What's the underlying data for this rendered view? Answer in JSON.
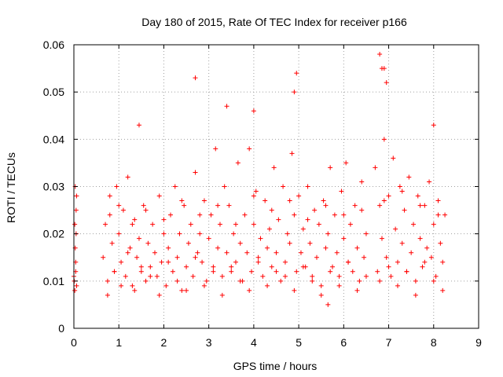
{
  "chart_data": {
    "type": "scatter",
    "title": "Day 180 of 2015, Rate Of TEC Index for receiver p166",
    "xlabel": "GPS time / hours",
    "ylabel": "ROTI / TECUs",
    "xlim": [
      0,
      9
    ],
    "ylim": [
      0,
      0.06
    ],
    "xticks": [
      "0",
      "1",
      "2",
      "3",
      "4",
      "5",
      "6",
      "7",
      "8",
      "9"
    ],
    "yticks": [
      "0",
      "0.01",
      "0.02",
      "0.03",
      "0.04",
      "0.05",
      "0.06"
    ],
    "grid": true,
    "marker": "+",
    "marker_color": "#ff0000",
    "series": [
      {
        "name": "ROTI",
        "x": [
          0.0,
          0.02,
          0.03,
          0.05,
          0.06,
          0.04,
          0.01,
          0.03,
          0.05,
          0.02,
          0.06,
          0.04,
          0.65,
          0.7,
          0.75,
          0.8,
          0.85,
          0.9,
          0.95,
          1.0,
          1.05,
          1.1,
          1.15,
          1.2,
          1.25,
          1.3,
          1.35,
          1.4,
          1.45,
          1.5,
          1.55,
          1.6,
          1.65,
          1.7,
          1.75,
          1.8,
          1.85,
          1.9,
          1.95,
          2.0,
          2.05,
          2.1,
          2.15,
          2.2,
          2.25,
          2.3,
          2.35,
          2.4,
          2.45,
          2.5,
          2.55,
          2.6,
          2.65,
          2.7,
          2.75,
          2.8,
          2.85,
          2.9,
          2.95,
          3.0,
          3.05,
          3.1,
          3.15,
          3.2,
          3.25,
          3.3,
          3.35,
          3.4,
          3.45,
          3.5,
          3.55,
          3.6,
          3.65,
          3.7,
          3.75,
          3.8,
          3.85,
          3.9,
          3.95,
          4.0,
          4.05,
          4.1,
          4.15,
          4.2,
          4.25,
          4.3,
          4.35,
          4.4,
          4.45,
          4.5,
          4.55,
          4.6,
          4.65,
          4.7,
          4.75,
          4.8,
          4.85,
          4.9,
          4.95,
          5.0,
          5.05,
          5.1,
          5.15,
          5.2,
          5.25,
          5.3,
          5.35,
          5.4,
          5.45,
          5.5,
          5.55,
          5.6,
          5.65,
          5.7,
          5.75,
          5.8,
          5.85,
          5.9,
          5.95,
          6.0,
          6.05,
          6.1,
          6.15,
          6.2,
          6.25,
          6.3,
          6.35,
          6.4,
          6.45,
          6.5,
          6.7,
          6.75,
          6.8,
          6.85,
          6.9,
          6.95,
          7.0,
          7.05,
          7.1,
          7.15,
          7.2,
          7.25,
          7.3,
          7.35,
          7.4,
          7.45,
          7.5,
          7.55,
          7.6,
          7.65,
          7.7,
          7.75,
          7.8,
          7.85,
          7.9,
          7.95,
          8.0,
          8.05,
          8.1,
          8.15,
          8.2,
          8.25,
          0.75,
          0.9,
          1.05,
          1.2,
          1.35,
          1.5,
          1.7,
          1.9,
          2.1,
          2.3,
          2.5,
          2.7,
          2.9,
          3.1,
          3.3,
          3.5,
          3.7,
          3.9,
          4.1,
          4.3,
          4.5,
          4.7,
          4.9,
          5.1,
          5.3,
          5.5,
          5.7,
          5.9,
          6.1,
          6.3,
          6.5,
          6.8,
          7.0,
          7.2,
          7.4,
          7.6,
          7.8,
          8.0,
          8.2,
          0.8,
          1.0,
          1.3,
          1.6,
          2.0,
          2.4,
          2.8,
          3.2,
          3.6,
          4.0,
          4.4,
          4.8,
          5.2,
          5.6,
          6.0,
          6.4,
          6.9,
          7.3,
          7.7,
          8.1,
          2.7,
          1.45,
          3.4,
          4.0,
          4.95,
          4.9,
          6.8,
          6.85,
          6.9,
          6.95,
          8.0,
          5.65
        ],
        "y": [
          0.011,
          0.022,
          0.03,
          0.025,
          0.009,
          0.014,
          0.01,
          0.017,
          0.02,
          0.008,
          0.028,
          0.012,
          0.015,
          0.022,
          0.01,
          0.028,
          0.018,
          0.012,
          0.03,
          0.02,
          0.014,
          0.025,
          0.011,
          0.032,
          0.017,
          0.009,
          0.023,
          0.015,
          0.019,
          0.012,
          0.026,
          0.01,
          0.018,
          0.013,
          0.022,
          0.016,
          0.011,
          0.028,
          0.014,
          0.02,
          0.009,
          0.017,
          0.024,
          0.012,
          0.03,
          0.015,
          0.02,
          0.008,
          0.026,
          0.013,
          0.018,
          0.022,
          0.011,
          0.033,
          0.016,
          0.02,
          0.014,
          0.027,
          0.01,
          0.019,
          0.024,
          0.013,
          0.038,
          0.017,
          0.022,
          0.011,
          0.03,
          0.016,
          0.026,
          0.012,
          0.02,
          0.014,
          0.035,
          0.018,
          0.01,
          0.024,
          0.016,
          0.038,
          0.012,
          0.022,
          0.029,
          0.015,
          0.019,
          0.011,
          0.027,
          0.017,
          0.021,
          0.013,
          0.034,
          0.016,
          0.023,
          0.01,
          0.03,
          0.014,
          0.02,
          0.018,
          0.037,
          0.024,
          0.012,
          0.028,
          0.016,
          0.021,
          0.013,
          0.03,
          0.018,
          0.011,
          0.025,
          0.015,
          0.022,
          0.009,
          0.027,
          0.017,
          0.02,
          0.034,
          0.013,
          0.024,
          0.016,
          0.011,
          0.029,
          0.019,
          0.035,
          0.014,
          0.022,
          0.012,
          0.026,
          0.017,
          0.01,
          0.031,
          0.015,
          0.02,
          0.034,
          0.012,
          0.026,
          0.019,
          0.04,
          0.015,
          0.028,
          0.011,
          0.036,
          0.021,
          0.014,
          0.03,
          0.018,
          0.025,
          0.012,
          0.032,
          0.016,
          0.022,
          0.01,
          0.028,
          0.019,
          0.013,
          0.026,
          0.017,
          0.031,
          0.015,
          0.022,
          0.011,
          0.027,
          0.018,
          0.014,
          0.024,
          0.007,
          0.012,
          0.009,
          0.016,
          0.008,
          0.013,
          0.011,
          0.007,
          0.014,
          0.01,
          0.008,
          0.015,
          0.009,
          0.012,
          0.007,
          0.013,
          0.01,
          0.008,
          0.014,
          0.009,
          0.012,
          0.011,
          0.008,
          0.013,
          0.01,
          0.007,
          0.012,
          0.009,
          0.014,
          0.008,
          0.011,
          0.01,
          0.013,
          0.009,
          0.012,
          0.007,
          0.014,
          0.01,
          0.008,
          0.024,
          0.026,
          0.022,
          0.025,
          0.023,
          0.027,
          0.024,
          0.026,
          0.022,
          0.028,
          0.025,
          0.027,
          0.023,
          0.026,
          0.024,
          0.025,
          0.027,
          0.029,
          0.026,
          0.024,
          0.053,
          0.043,
          0.047,
          0.046,
          0.054,
          0.05,
          0.058,
          0.055,
          0.055,
          0.052,
          0.043,
          0.005
        ]
      }
    ]
  }
}
